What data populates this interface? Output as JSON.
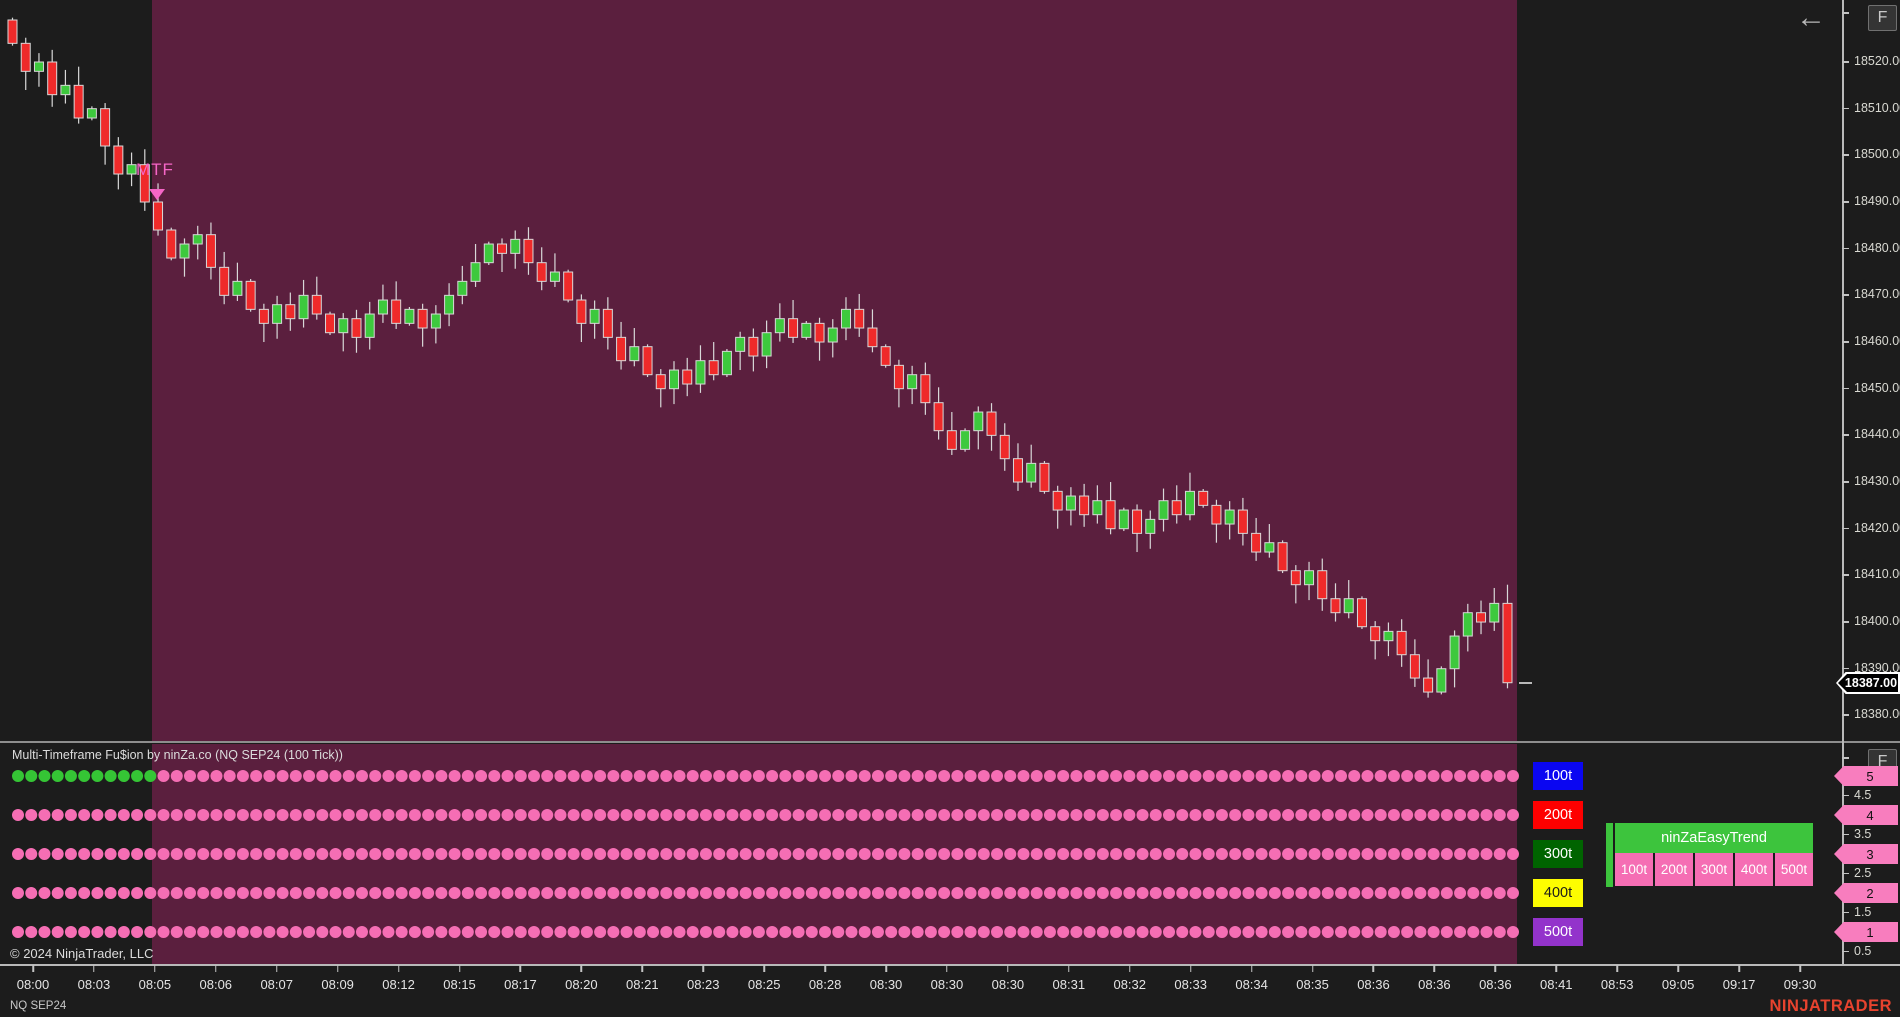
{
  "header": {
    "collapse_arrow": "←",
    "axis_button_label": "F"
  },
  "chart_panel": {
    "mtf_label": "MTF",
    "copyright": "© 2024 NinjaTrader, LLC",
    "current_price": "18387.00",
    "price_ticks": [
      "18520.00",
      "18510.00",
      "18500.00",
      "18490.00",
      "18480.00",
      "18470.00",
      "18460.00",
      "18450.00",
      "18440.00",
      "18430.00",
      "18420.00",
      "18410.00",
      "18400.00",
      "18390.00",
      "18380.00"
    ]
  },
  "indicator_panel": {
    "title": "Multi-Timeframe Fu$ion by ninZa.co (NQ SEP24 (100 Tick))",
    "rows": [
      {
        "label": "100t",
        "box_color": "#0A06F2",
        "label_text_color": "#FFFFFF",
        "value": "5",
        "green_dots": 11,
        "total_dots": 114
      },
      {
        "label": "200t",
        "box_color": "#FE0000",
        "label_text_color": "#FFFFFF",
        "value": "4",
        "green_dots": 0,
        "total_dots": 114
      },
      {
        "label": "300t",
        "box_color": "#006400",
        "label_text_color": "#FFFFFF",
        "value": "3",
        "green_dots": 0,
        "total_dots": 114
      },
      {
        "label": "400t",
        "box_color": "#FDFD00",
        "label_text_color": "#1A1A1A",
        "value": "2",
        "green_dots": 0,
        "total_dots": 114
      },
      {
        "label": "500t",
        "box_color": "#9333CB",
        "label_text_color": "#FFFFFF",
        "value": "1",
        "green_dots": 0,
        "total_dots": 114
      }
    ],
    "scale_ticks": [
      "4.5",
      "3.5",
      "2.5",
      "1.5",
      "0.5"
    ],
    "legend": {
      "title": "ninZaEasyTrend",
      "items": [
        "100t",
        "200t",
        "300t",
        "400t",
        "500t"
      ]
    }
  },
  "time_axis": {
    "labels": [
      "08:00",
      "08:03",
      "08:05",
      "08:06",
      "08:07",
      "08:09",
      "08:12",
      "08:15",
      "08:17",
      "08:20",
      "08:21",
      "08:23",
      "08:25",
      "08:28",
      "08:30",
      "08:30",
      "08:30",
      "08:31",
      "08:32",
      "08:33",
      "08:34",
      "08:35",
      "08:36",
      "08:36",
      "08:36",
      "08:41",
      "08:53",
      "09:05",
      "09:17",
      "09:30"
    ]
  },
  "status_bar": {
    "tab_label": "NQ SEP24",
    "brand": "NINJATRADER"
  },
  "colors": {
    "background": "#1C1C1C",
    "highlight_purple": "#5B1F3E",
    "candle_up": "#3DC93D",
    "candle_down": "#EF2A2A",
    "wick": "#D8D8D8",
    "dot_pink": "#F56EB4",
    "dot_green": "#35C535",
    "scale_tag_pink": "#F87DBE",
    "brand_red": "#E8432E",
    "mtf_pink": "#F566C6",
    "legend_green": "#3DC43D",
    "axis_line": "#C4C4C4"
  },
  "chart_data": {
    "type": "candlestick",
    "symbol": "NQ SEP24 (100 Tick)",
    "y_min": 18380,
    "y_max": 18520,
    "y_tick_step": 10,
    "last_price": 18387,
    "first_open": 18529,
    "closes": [
      18524,
      18518,
      18520,
      18513,
      18515,
      18508,
      18510,
      18502,
      18496,
      18498,
      18490,
      18484,
      18478,
      18481,
      18483,
      18476,
      18470,
      18473,
      18467,
      18464,
      18468,
      18465,
      18470,
      18466,
      18462,
      18465,
      18461,
      18466,
      18469,
      18464,
      18467,
      18463,
      18466,
      18470,
      18473,
      18477,
      18481,
      18479,
      18482,
      18477,
      18473,
      18475,
      18469,
      18464,
      18467,
      18461,
      18456,
      18459,
      18453,
      18450,
      18454,
      18451,
      18456,
      18453,
      18458,
      18461,
      18457,
      18462,
      18465,
      18461,
      18464,
      18460,
      18463,
      18467,
      18463,
      18459,
      18455,
      18450,
      18453,
      18447,
      18441,
      18437,
      18441,
      18445,
      18440,
      18435,
      18430,
      18434,
      18428,
      18424,
      18427,
      18423,
      18426,
      18420,
      18424,
      18419,
      18422,
      18426,
      18423,
      18428,
      18425,
      18421,
      18424,
      18419,
      18415,
      18417,
      18411,
      18408,
      18411,
      18405,
      18402,
      18405,
      18399,
      18396,
      18398,
      18393,
      18388,
      18385,
      18390,
      18397,
      18402,
      18400,
      18404,
      18387
    ]
  }
}
